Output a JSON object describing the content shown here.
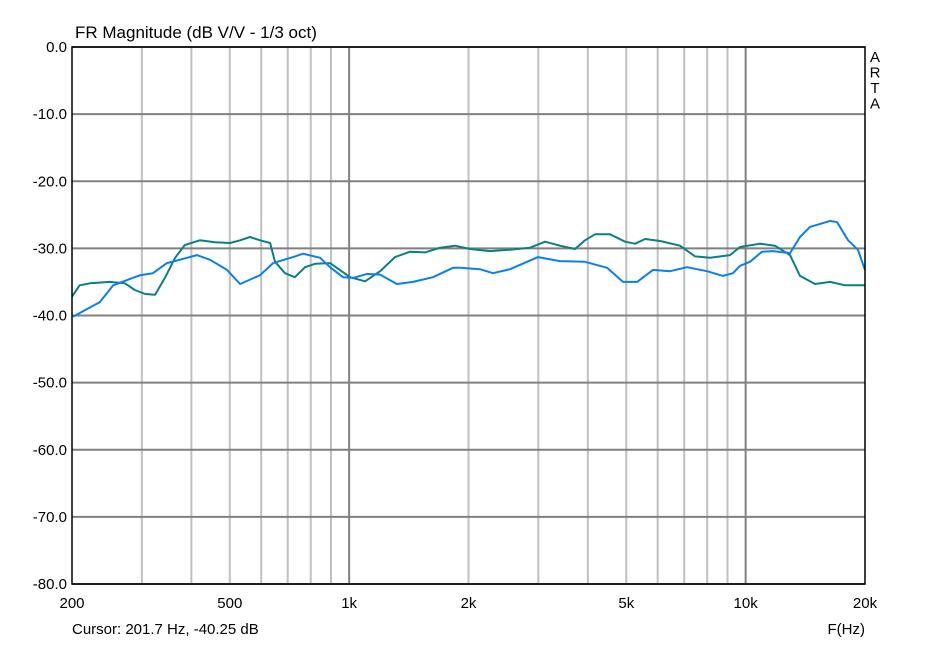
{
  "chart_data": {
    "type": "line",
    "title": "FR Magnitude (dB V/V - 1/3 oct)",
    "xlabel": "F(Hz)",
    "ylabel": "",
    "x_scale": "log",
    "xlim": [
      200,
      20000
    ],
    "ylim": [
      -80,
      0
    ],
    "grid": true,
    "x_ticks": [
      {
        "v": 200,
        "label": "200"
      },
      {
        "v": 500,
        "label": "500"
      },
      {
        "v": 1000,
        "label": "1k"
      },
      {
        "v": 2000,
        "label": "2k"
      },
      {
        "v": 5000,
        "label": "5k"
      },
      {
        "v": 10000,
        "label": "10k"
      },
      {
        "v": 20000,
        "label": "20k"
      }
    ],
    "y_ticks": [
      {
        "v": 0,
        "label": "0.0"
      },
      {
        "v": -10,
        "label": "-10.0"
      },
      {
        "v": -20,
        "label": "-20.0"
      },
      {
        "v": -30,
        "label": "-30.0"
      },
      {
        "v": -40,
        "label": "-40.0"
      },
      {
        "v": -50,
        "label": "-50.0"
      },
      {
        "v": -60,
        "label": "-60.0"
      },
      {
        "v": -70,
        "label": "-70.0"
      },
      {
        "v": -80,
        "label": "-80.0"
      }
    ],
    "series": [
      {
        "color": "#0a8080",
        "points": [
          [
            200,
            -37.2
          ],
          [
            209,
            -35.5
          ],
          [
            222,
            -35.2
          ],
          [
            249,
            -35.0
          ],
          [
            272,
            -35.2
          ],
          [
            288,
            -36.2
          ],
          [
            306,
            -36.8
          ],
          [
            324,
            -36.9
          ],
          [
            343,
            -34.4
          ],
          [
            364,
            -31.4
          ],
          [
            385,
            -29.5
          ],
          [
            420,
            -28.8
          ],
          [
            459,
            -29.1
          ],
          [
            501,
            -29.2
          ],
          [
            531,
            -28.8
          ],
          [
            562,
            -28.3
          ],
          [
            596,
            -28.8
          ],
          [
            632,
            -29.2
          ],
          [
            650,
            -32.0
          ],
          [
            689,
            -33.7
          ],
          [
            730,
            -34.3
          ],
          [
            774,
            -32.8
          ],
          [
            820,
            -32.3
          ],
          [
            895,
            -32.2
          ],
          [
            948,
            -33.2
          ],
          [
            1005,
            -34.3
          ],
          [
            1097,
            -34.9
          ],
          [
            1197,
            -33.4
          ],
          [
            1305,
            -31.3
          ],
          [
            1424,
            -30.5
          ],
          [
            1554,
            -30.6
          ],
          [
            1696,
            -29.9
          ],
          [
            1850,
            -29.6
          ],
          [
            2018,
            -30.1
          ],
          [
            2266,
            -30.4
          ],
          [
            2545,
            -30.2
          ],
          [
            2858,
            -29.9
          ],
          [
            3118,
            -29.0
          ],
          [
            3403,
            -29.6
          ],
          [
            3713,
            -30.1
          ],
          [
            3935,
            -28.8
          ],
          [
            4170,
            -27.9
          ],
          [
            4551,
            -27.9
          ],
          [
            4966,
            -29.0
          ],
          [
            5262,
            -29.3
          ],
          [
            5576,
            -28.6
          ],
          [
            6085,
            -28.9
          ],
          [
            6832,
            -29.6
          ],
          [
            7455,
            -31.2
          ],
          [
            8135,
            -31.4
          ],
          [
            9133,
            -31.0
          ],
          [
            9679,
            -29.8
          ],
          [
            10868,
            -29.3
          ],
          [
            11859,
            -29.6
          ],
          [
            12940,
            -31.0
          ],
          [
            13713,
            -34.1
          ],
          [
            14963,
            -35.3
          ],
          [
            16329,
            -35.0
          ],
          [
            17818,
            -35.5
          ],
          [
            20000,
            -35.5
          ]
        ]
      },
      {
        "color": "#0a7ff0",
        "points": [
          [
            201,
            -40.2
          ],
          [
            235,
            -38.0
          ],
          [
            254,
            -35.5
          ],
          [
            297,
            -34.0
          ],
          [
            320,
            -33.7
          ],
          [
            347,
            -32.2
          ],
          [
            390,
            -31.4
          ],
          [
            413,
            -31.0
          ],
          [
            446,
            -31.7
          ],
          [
            492,
            -33.2
          ],
          [
            531,
            -35.3
          ],
          [
            596,
            -34.0
          ],
          [
            643,
            -32.2
          ],
          [
            722,
            -31.3
          ],
          [
            765,
            -30.8
          ],
          [
            845,
            -31.4
          ],
          [
            895,
            -32.8
          ],
          [
            965,
            -34.3
          ],
          [
            1023,
            -34.4
          ],
          [
            1109,
            -33.8
          ],
          [
            1197,
            -33.9
          ],
          [
            1320,
            -35.3
          ],
          [
            1449,
            -35.0
          ],
          [
            1627,
            -34.3
          ],
          [
            1828,
            -32.9
          ],
          [
            1905,
            -32.9
          ],
          [
            2138,
            -33.1
          ],
          [
            2306,
            -33.7
          ],
          [
            2545,
            -33.1
          ],
          [
            2809,
            -32.0
          ],
          [
            2995,
            -31.3
          ],
          [
            3403,
            -31.9
          ],
          [
            3935,
            -32.0
          ],
          [
            4472,
            -32.9
          ],
          [
            4906,
            -35.0
          ],
          [
            5323,
            -35.0
          ],
          [
            5839,
            -33.2
          ],
          [
            6446,
            -33.4
          ],
          [
            7113,
            -32.8
          ],
          [
            7989,
            -33.4
          ],
          [
            8768,
            -34.1
          ],
          [
            9292,
            -33.7
          ],
          [
            9679,
            -32.6
          ],
          [
            10257,
            -32.0
          ],
          [
            10995,
            -30.5
          ],
          [
            11724,
            -30.4
          ],
          [
            12940,
            -30.7
          ],
          [
            13713,
            -28.3
          ],
          [
            14535,
            -26.8
          ],
          [
            16329,
            -25.9
          ],
          [
            17006,
            -26.1
          ],
          [
            18130,
            -28.8
          ],
          [
            19190,
            -30.2
          ],
          [
            20000,
            -33.2
          ]
        ]
      }
    ]
  },
  "watermark": "ARTA",
  "cursor_readout": "Cursor: 201.7 Hz, -40.25 dB"
}
